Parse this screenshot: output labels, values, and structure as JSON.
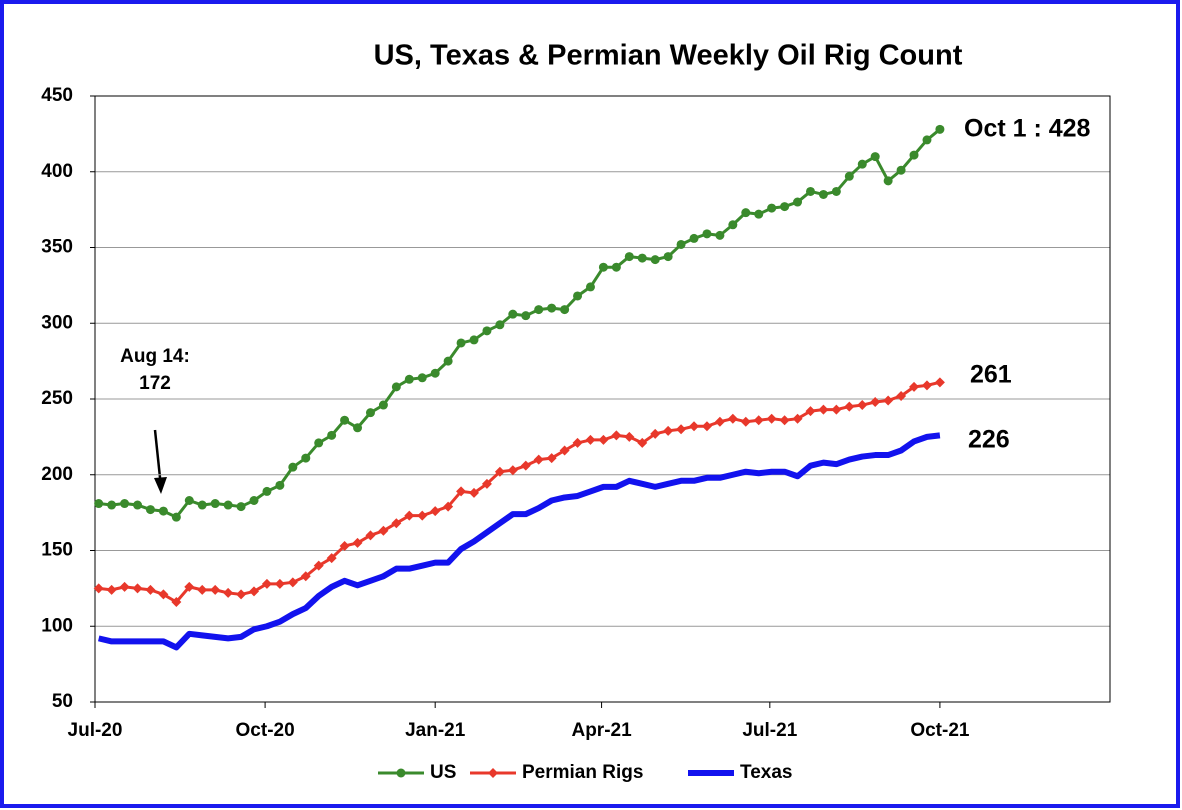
{
  "chart_data": {
    "type": "line",
    "title": "US, Texas & Permian Weekly Oil Rig Count",
    "x": [
      "2020-07-03",
      "2020-07-10",
      "2020-07-17",
      "2020-07-24",
      "2020-07-31",
      "2020-08-07",
      "2020-08-14",
      "2020-08-21",
      "2020-08-28",
      "2020-09-04",
      "2020-09-11",
      "2020-09-18",
      "2020-09-25",
      "2020-10-02",
      "2020-10-09",
      "2020-10-16",
      "2020-10-23",
      "2020-10-30",
      "2020-11-06",
      "2020-11-13",
      "2020-11-20",
      "2020-11-27",
      "2020-12-04",
      "2020-12-11",
      "2020-12-18",
      "2020-12-25",
      "2021-01-01",
      "2021-01-08",
      "2021-01-15",
      "2021-01-22",
      "2021-01-29",
      "2021-02-05",
      "2021-02-12",
      "2021-02-19",
      "2021-02-26",
      "2021-03-05",
      "2021-03-12",
      "2021-03-19",
      "2021-03-26",
      "2021-04-02",
      "2021-04-09",
      "2021-04-16",
      "2021-04-23",
      "2021-04-30",
      "2021-05-07",
      "2021-05-14",
      "2021-05-21",
      "2021-05-28",
      "2021-06-04",
      "2021-06-11",
      "2021-06-18",
      "2021-06-25",
      "2021-07-02",
      "2021-07-09",
      "2021-07-16",
      "2021-07-23",
      "2021-07-30",
      "2021-08-06",
      "2021-08-13",
      "2021-08-20",
      "2021-08-27",
      "2021-09-03",
      "2021-09-10",
      "2021-09-17",
      "2021-09-24",
      "2021-10-01"
    ],
    "series": [
      {
        "name": "US",
        "color": "#3a8a2c",
        "marker": "circle",
        "values": [
          181,
          180,
          181,
          180,
          177,
          176,
          172,
          183,
          180,
          181,
          180,
          179,
          183,
          189,
          193,
          205,
          211,
          221,
          226,
          236,
          231,
          241,
          246,
          258,
          263,
          264,
          267,
          275,
          287,
          289,
          295,
          299,
          306,
          305,
          309,
          310,
          309,
          318,
          324,
          337,
          337,
          344,
          343,
          342,
          344,
          352,
          356,
          359,
          358,
          365,
          373,
          372,
          376,
          377,
          380,
          387,
          385,
          387,
          397,
          405,
          410,
          394,
          401,
          411,
          421,
          428
        ]
      },
      {
        "name": "Permian Rigs",
        "color": "#e8382b",
        "marker": "diamond",
        "values": [
          125,
          124,
          126,
          125,
          124,
          121,
          116,
          126,
          124,
          124,
          122,
          121,
          123,
          128,
          128,
          129,
          133,
          140,
          145,
          153,
          155,
          160,
          163,
          168,
          173,
          173,
          176,
          179,
          189,
          188,
          194,
          202,
          203,
          206,
          210,
          211,
          216,
          221,
          223,
          223,
          226,
          225,
          221,
          227,
          229,
          230,
          232,
          232,
          235,
          237,
          235,
          236,
          237,
          236,
          237,
          242,
          243,
          243,
          245,
          246,
          248,
          249,
          252,
          258,
          259,
          261
        ]
      },
      {
        "name": "Texas",
        "color": "#1212ee",
        "marker": "none",
        "values": [
          92,
          90,
          90,
          90,
          90,
          90,
          86,
          95,
          94,
          93,
          92,
          93,
          98,
          100,
          103,
          108,
          112,
          120,
          126,
          130,
          127,
          130,
          133,
          138,
          138,
          140,
          142,
          142,
          151,
          156,
          162,
          168,
          174,
          174,
          178,
          183,
          185,
          186,
          189,
          192,
          192,
          196,
          194,
          192,
          194,
          196,
          196,
          198,
          198,
          200,
          202,
          201,
          202,
          202,
          199,
          206,
          208,
          207,
          210,
          212,
          213,
          213,
          216,
          222,
          225,
          226
        ]
      }
    ],
    "xlim": [
      "2020-07-01",
      "2022-01-01"
    ],
    "xticks": [
      {
        "value": "2020-07-01",
        "label": "Jul-20"
      },
      {
        "value": "2020-10-01",
        "label": "Oct-20"
      },
      {
        "value": "2021-01-01",
        "label": "Jan-21"
      },
      {
        "value": "2021-04-01",
        "label": "Apr-21"
      },
      {
        "value": "2021-07-01",
        "label": "Jul-21"
      },
      {
        "value": "2021-10-01",
        "label": "Oct-21"
      }
    ],
    "ylim": [
      50,
      450
    ],
    "yticks": [
      50,
      100,
      150,
      200,
      250,
      300,
      350,
      400,
      450
    ],
    "grid": true,
    "legend": "bottom",
    "annotations": [
      "Aug 14:",
      "172",
      "Oct 1 : 428",
      "261",
      "226"
    ]
  }
}
